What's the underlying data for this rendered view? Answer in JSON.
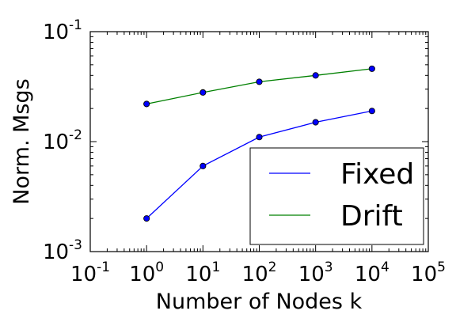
{
  "chart_data": {
    "type": "line",
    "xscale": "log",
    "yscale": "log",
    "xlim": [
      0.1,
      100000
    ],
    "ylim": [
      0.001,
      0.1
    ],
    "xlabel": "Number of Nodes k",
    "ylabel": "Norm. Msgs",
    "x_ticks": [
      {
        "base": "10",
        "exp": "-1",
        "value": 0.1
      },
      {
        "base": "10",
        "exp": "0",
        "value": 1
      },
      {
        "base": "10",
        "exp": "1",
        "value": 10
      },
      {
        "base": "10",
        "exp": "2",
        "value": 100
      },
      {
        "base": "10",
        "exp": "3",
        "value": 1000
      },
      {
        "base": "10",
        "exp": "4",
        "value": 10000
      },
      {
        "base": "10",
        "exp": "5",
        "value": 100000
      }
    ],
    "y_ticks": [
      {
        "base": "10",
        "exp": "-3",
        "value": 0.001
      },
      {
        "base": "10",
        "exp": "-2",
        "value": 0.01
      },
      {
        "base": "10",
        "exp": "-1",
        "value": 0.1
      }
    ],
    "x": [
      1,
      10,
      100,
      1000,
      10000
    ],
    "series": [
      {
        "name": "Fixed",
        "color": "#0000ff",
        "values": [
          0.002,
          0.006,
          0.011,
          0.015,
          0.019
        ]
      },
      {
        "name": "Drift",
        "color": "#008000",
        "values": [
          0.022,
          0.028,
          0.035,
          0.04,
          0.046
        ]
      }
    ],
    "legend_position": "bottom-right",
    "grid": false
  }
}
